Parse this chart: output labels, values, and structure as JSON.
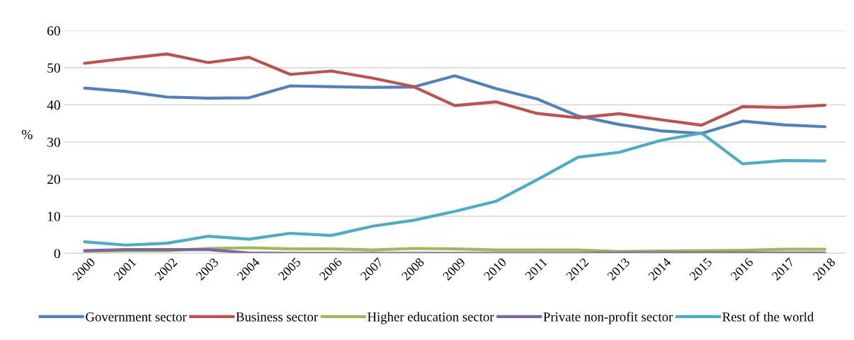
{
  "chart_data": {
    "type": "line",
    "ylabel": "%",
    "categories": [
      "2000",
      "2001",
      "2002",
      "2003",
      "2004",
      "2005",
      "2006",
      "2007",
      "2008",
      "2009",
      "2010",
      "2011",
      "2012",
      "2013",
      "2014",
      "2015",
      "2016",
      "2017",
      "2018"
    ],
    "series": [
      {
        "name": "Government sector",
        "color": "#4f81bd",
        "values": [
          44.5,
          43.6,
          42.1,
          41.8,
          41.9,
          45.1,
          44.9,
          44.7,
          44.8,
          47.8,
          44.4,
          41.6,
          37.0,
          34.7,
          33.0,
          32.3,
          35.6,
          34.6,
          34.1
        ]
      },
      {
        "name": "Business sector",
        "color": "#c0504d",
        "values": [
          51.2,
          52.5,
          53.7,
          51.4,
          52.8,
          48.2,
          49.1,
          47.2,
          44.9,
          39.8,
          40.8,
          37.7,
          36.5,
          37.6,
          36.0,
          34.5,
          39.5,
          39.3,
          39.9
        ]
      },
      {
        "name": "Higher education sector",
        "color": "#9bbb59",
        "values": [
          0.5,
          0.7,
          0.7,
          1.3,
          1.5,
          1.2,
          1.2,
          0.9,
          1.3,
          1.2,
          0.9,
          0.9,
          0.9,
          0.5,
          0.6,
          0.7,
          0.8,
          1.1,
          1.1
        ]
      },
      {
        "name": "Private non-profit sector",
        "color": "#8064a2",
        "values": [
          0.7,
          1.0,
          1.0,
          1.0,
          0.1,
          0.0,
          0.0,
          0.0,
          0.0,
          0.0,
          0.0,
          0.0,
          0.0,
          0.1,
          0.1,
          0.1,
          0.1,
          0.1,
          0.1
        ]
      },
      {
        "name": "Rest of the world",
        "color": "#4bacc6",
        "values": [
          3.1,
          2.2,
          2.7,
          4.6,
          3.8,
          5.4,
          4.8,
          7.3,
          8.9,
          11.3,
          14.0,
          19.8,
          25.9,
          27.2,
          30.4,
          32.4,
          24.1,
          25.0,
          24.9
        ]
      }
    ],
    "ylim": [
      0,
      60
    ],
    "yticks": [
      0,
      10,
      20,
      30,
      40,
      50,
      60
    ],
    "grid": "y",
    "legend": "bottom",
    "marker": "none",
    "line_style": "solid"
  }
}
